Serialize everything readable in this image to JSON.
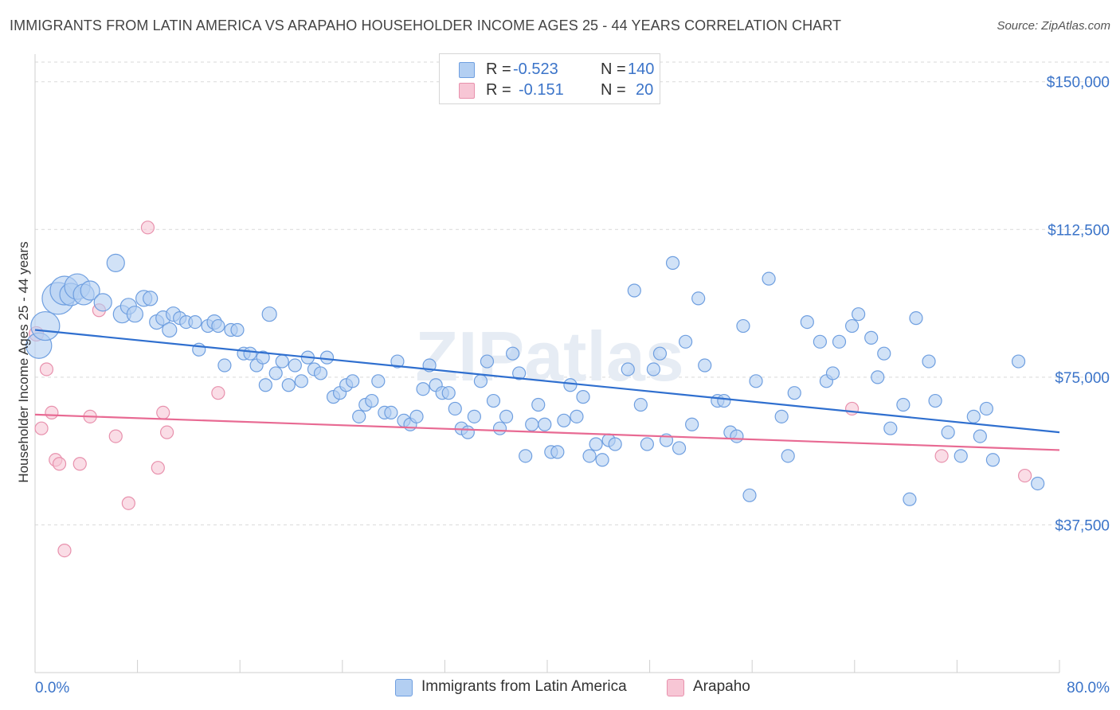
{
  "title": "IMMIGRANTS FROM LATIN AMERICA VS ARAPAHO HOUSEHOLDER INCOME AGES 25 - 44 YEARS CORRELATION CHART",
  "source": "Source: ZipAtlas.com",
  "watermark": "ZIPatlas",
  "legend": {
    "rows": [
      {
        "r_label": "R =",
        "r_value": "-0.523",
        "n_label": "N =",
        "n_value": "140"
      },
      {
        "r_label": "R =",
        "r_value": "-0.151",
        "n_label": "N =",
        "n_value": "20"
      }
    ]
  },
  "bottom_legend": {
    "series1": "Immigrants from Latin America",
    "series2": "Arapaho"
  },
  "colors": {
    "blue_fill": "#b3cff2",
    "blue_stroke": "#6f9fe0",
    "blue_line": "#2f6fcf",
    "pink_fill": "#f7c6d5",
    "pink_stroke": "#e891ad",
    "pink_line": "#e86a93",
    "axis_label": "#3b74c9",
    "grid": "#d9d9d9"
  },
  "chart_data": {
    "type": "scatter",
    "xlabel": "",
    "ylabel": "Householder Income Ages 25 - 44 years",
    "xlim": [
      0,
      80
    ],
    "ylim": [
      0,
      155000
    ],
    "x_tick_labels": [
      "0.0%",
      "80.0%"
    ],
    "y_ticks": [
      37500,
      75000,
      112500,
      150000
    ],
    "y_tick_labels": [
      "$37,500",
      "$75,000",
      "$112,500",
      "$150,000"
    ],
    "grid": "dashed horizontal",
    "legend_placement": "top-center",
    "series": [
      {
        "name": "Immigrants from Latin America",
        "r": -0.523,
        "n": 140,
        "trend": {
          "x": [
            0,
            80
          ],
          "y": [
            87000,
            61000
          ]
        },
        "points": [
          [
            0.3,
            83000,
            16
          ],
          [
            0.8,
            88000,
            18
          ],
          [
            1.8,
            95000,
            20
          ],
          [
            2.3,
            97000,
            18
          ],
          [
            2.8,
            96000,
            14
          ],
          [
            3.3,
            98000,
            16
          ],
          [
            3.8,
            96000,
            13
          ],
          [
            4.3,
            97000,
            12
          ],
          [
            5.3,
            94000,
            11
          ],
          [
            6.3,
            104000,
            11
          ],
          [
            6.8,
            91000,
            11
          ],
          [
            7.3,
            93000,
            10
          ],
          [
            7.8,
            91000,
            10
          ],
          [
            8.5,
            95000,
            10
          ],
          [
            9.0,
            95000,
            9
          ],
          [
            9.5,
            89000,
            9
          ],
          [
            10.0,
            90000,
            9
          ],
          [
            10.5,
            87000,
            9
          ],
          [
            10.8,
            91000,
            9
          ],
          [
            11.3,
            90000,
            8
          ],
          [
            11.8,
            89000,
            8
          ],
          [
            12.5,
            89000,
            8
          ],
          [
            12.8,
            82000,
            8
          ],
          [
            13.5,
            88000,
            8
          ],
          [
            14.0,
            89000,
            9
          ],
          [
            14.3,
            88000,
            8
          ],
          [
            14.8,
            78000,
            8
          ],
          [
            15.3,
            87000,
            8
          ],
          [
            15.8,
            87000,
            8
          ],
          [
            16.3,
            81000,
            8
          ],
          [
            16.8,
            81000,
            8
          ],
          [
            17.3,
            78000,
            8
          ],
          [
            17.8,
            80000,
            8
          ],
          [
            18.0,
            73000,
            8
          ],
          [
            18.3,
            91000,
            9
          ],
          [
            18.8,
            76000,
            8
          ],
          [
            19.3,
            79000,
            8
          ],
          [
            19.8,
            73000,
            8
          ],
          [
            20.3,
            78000,
            8
          ],
          [
            20.8,
            74000,
            8
          ],
          [
            21.3,
            80000,
            8
          ],
          [
            21.8,
            77000,
            8
          ],
          [
            22.3,
            76000,
            8
          ],
          [
            22.8,
            80000,
            8
          ],
          [
            23.3,
            70000,
            8
          ],
          [
            23.8,
            71000,
            8
          ],
          [
            24.3,
            73000,
            8
          ],
          [
            24.8,
            74000,
            8
          ],
          [
            25.3,
            65000,
            8
          ],
          [
            25.8,
            68000,
            8
          ],
          [
            26.3,
            69000,
            8
          ],
          [
            26.8,
            74000,
            8
          ],
          [
            27.3,
            66000,
            8
          ],
          [
            27.8,
            66000,
            8
          ],
          [
            28.3,
            79000,
            8
          ],
          [
            28.8,
            64000,
            8
          ],
          [
            29.3,
            63000,
            8
          ],
          [
            29.8,
            65000,
            8
          ],
          [
            30.3,
            72000,
            8
          ],
          [
            30.8,
            78000,
            8
          ],
          [
            31.3,
            73000,
            8
          ],
          [
            31.8,
            71000,
            8
          ],
          [
            32.3,
            71000,
            8
          ],
          [
            32.8,
            67000,
            8
          ],
          [
            33.3,
            62000,
            8
          ],
          [
            33.8,
            61000,
            8
          ],
          [
            34.3,
            65000,
            8
          ],
          [
            34.8,
            74000,
            8
          ],
          [
            35.3,
            79000,
            8
          ],
          [
            35.8,
            69000,
            8
          ],
          [
            36.3,
            62000,
            8
          ],
          [
            36.8,
            65000,
            8
          ],
          [
            37.3,
            81000,
            8
          ],
          [
            37.8,
            76000,
            8
          ],
          [
            38.3,
            55000,
            8
          ],
          [
            38.8,
            63000,
            8
          ],
          [
            39.3,
            68000,
            8
          ],
          [
            39.8,
            63000,
            8
          ],
          [
            40.3,
            56000,
            8
          ],
          [
            40.8,
            56000,
            8
          ],
          [
            41.3,
            64000,
            8
          ],
          [
            41.8,
            73000,
            8
          ],
          [
            42.3,
            65000,
            8
          ],
          [
            42.8,
            70000,
            8
          ],
          [
            43.3,
            55000,
            8
          ],
          [
            43.8,
            58000,
            8
          ],
          [
            44.3,
            54000,
            8
          ],
          [
            44.8,
            59000,
            8
          ],
          [
            45.3,
            58000,
            8
          ],
          [
            46.3,
            77000,
            8
          ],
          [
            46.8,
            97000,
            8
          ],
          [
            47.3,
            68000,
            8
          ],
          [
            47.8,
            58000,
            8
          ],
          [
            48.3,
            77000,
            8
          ],
          [
            48.8,
            81000,
            8
          ],
          [
            49.3,
            59000,
            8
          ],
          [
            49.8,
            104000,
            8
          ],
          [
            50.3,
            57000,
            8
          ],
          [
            50.8,
            84000,
            8
          ],
          [
            51.3,
            63000,
            8
          ],
          [
            51.8,
            95000,
            8
          ],
          [
            52.3,
            78000,
            8
          ],
          [
            53.3,
            69000,
            8
          ],
          [
            53.8,
            69000,
            8
          ],
          [
            54.3,
            61000,
            8
          ],
          [
            54.8,
            60000,
            8
          ],
          [
            55.3,
            88000,
            8
          ],
          [
            55.8,
            45000,
            8
          ],
          [
            56.3,
            74000,
            8
          ],
          [
            57.3,
            100000,
            8
          ],
          [
            58.3,
            65000,
            8
          ],
          [
            58.8,
            55000,
            8
          ],
          [
            59.3,
            71000,
            8
          ],
          [
            60.3,
            89000,
            8
          ],
          [
            61.3,
            84000,
            8
          ],
          [
            61.8,
            74000,
            8
          ],
          [
            62.3,
            76000,
            8
          ],
          [
            62.8,
            84000,
            8
          ],
          [
            63.8,
            88000,
            8
          ],
          [
            64.3,
            91000,
            8
          ],
          [
            65.3,
            85000,
            8
          ],
          [
            65.8,
            75000,
            8
          ],
          [
            66.3,
            81000,
            8
          ],
          [
            66.8,
            62000,
            8
          ],
          [
            67.8,
            68000,
            8
          ],
          [
            68.3,
            44000,
            8
          ],
          [
            68.8,
            90000,
            8
          ],
          [
            69.8,
            79000,
            8
          ],
          [
            70.3,
            69000,
            8
          ],
          [
            71.3,
            61000,
            8
          ],
          [
            72.3,
            55000,
            8
          ],
          [
            73.3,
            65000,
            8
          ],
          [
            73.8,
            60000,
            8
          ],
          [
            74.3,
            67000,
            8
          ],
          [
            74.8,
            54000,
            8
          ],
          [
            76.8,
            79000,
            8
          ],
          [
            78.3,
            48000,
            8
          ]
        ]
      },
      {
        "name": "Arapaho",
        "r": -0.151,
        "n": 20,
        "trend": {
          "x": [
            0,
            80
          ],
          "y": [
            65500,
            56500
          ]
        },
        "points": [
          [
            0.1,
            86000,
            9
          ],
          [
            0.5,
            62000,
            8
          ],
          [
            0.9,
            77000,
            8
          ],
          [
            1.3,
            66000,
            8
          ],
          [
            1.6,
            54000,
            8
          ],
          [
            1.9,
            53000,
            8
          ],
          [
            2.3,
            31000,
            8
          ],
          [
            3.5,
            53000,
            8
          ],
          [
            4.3,
            65000,
            8
          ],
          [
            5.0,
            92000,
            8
          ],
          [
            6.3,
            60000,
            8
          ],
          [
            7.3,
            43000,
            8
          ],
          [
            8.8,
            113000,
            8
          ],
          [
            9.6,
            52000,
            8
          ],
          [
            10.0,
            66000,
            8
          ],
          [
            10.3,
            61000,
            8
          ],
          [
            14.3,
            71000,
            8
          ],
          [
            63.8,
            67000,
            8
          ],
          [
            70.8,
            55000,
            8
          ],
          [
            77.3,
            50000,
            8
          ]
        ]
      }
    ]
  }
}
